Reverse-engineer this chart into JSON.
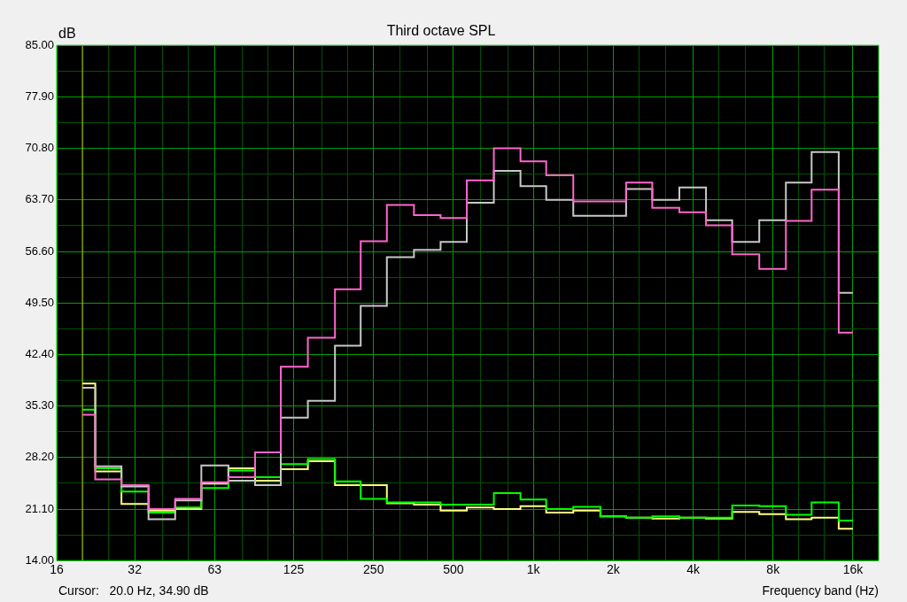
{
  "chart_data": {
    "type": "step",
    "title": "Third octave SPL",
    "ylabel": "dB",
    "xlabel": "Frequency band (Hz)",
    "annotations": [
      "Cursor:   20.0 Hz, 34.90 dB"
    ],
    "x": [
      20,
      25,
      31.5,
      40,
      50,
      63,
      80,
      100,
      125,
      160,
      200,
      250,
      315,
      400,
      500,
      630,
      800,
      1000,
      1250,
      1600,
      2000,
      2500,
      3150,
      4000,
      5000,
      6300,
      8000,
      10000,
      12500,
      16000
    ],
    "series": [
      {
        "color": "#ff66cc",
        "values": [
          34.1,
          25.2,
          24.4,
          21.1,
          22.5,
          24.8,
          25.5,
          28.9,
          40.7,
          44.7,
          51.4,
          58.0,
          63.0,
          61.6,
          61.2,
          66.4,
          70.8,
          69.0,
          67.1,
          63.5,
          63.5,
          66.1,
          62.6,
          62.0,
          60.2,
          56.2,
          54.2,
          60.8,
          65.1,
          45.4
        ]
      },
      {
        "color": "#c8c8c8",
        "values": [
          37.8,
          27.0,
          24.2,
          19.7,
          22.3,
          27.1,
          25.0,
          24.4,
          33.7,
          36.0,
          43.6,
          49.1,
          55.8,
          56.8,
          57.9,
          63.3,
          67.7,
          65.6,
          63.7,
          61.5,
          61.5,
          65.2,
          63.7,
          65.4,
          60.9,
          57.9,
          60.9,
          66.1,
          70.3,
          50.9
        ]
      },
      {
        "color": "#00ff00",
        "values": [
          34.8,
          26.7,
          23.5,
          20.6,
          21.3,
          24.0,
          26.4,
          25.5,
          27.3,
          28.0,
          24.9,
          22.5,
          22.0,
          22.0,
          21.7,
          21.7,
          23.3,
          22.4,
          21.1,
          21.4,
          20.1,
          19.9,
          20.1,
          19.9,
          19.9,
          21.6,
          21.5,
          20.3,
          22.0,
          19.5
        ]
      },
      {
        "color": "#ffff80",
        "values": [
          38.4,
          26.3,
          21.8,
          20.9,
          21.1,
          24.6,
          26.7,
          25.0,
          26.6,
          27.7,
          24.4,
          24.4,
          21.9,
          21.7,
          20.9,
          21.3,
          21.1,
          21.5,
          20.6,
          20.9,
          20.1,
          19.9,
          19.8,
          19.9,
          19.8,
          20.7,
          20.4,
          19.7,
          19.9,
          18.4
        ]
      }
    ],
    "log": "x",
    "xlim": [
      16,
      20000
    ],
    "xticks": [
      {
        "value": 16,
        "label": "16"
      },
      {
        "value": 20,
        "label": null
      },
      {
        "value": 25,
        "label": null
      },
      {
        "value": 31.5,
        "label": "32"
      },
      {
        "value": 40,
        "label": null
      },
      {
        "value": 50,
        "label": null
      },
      {
        "value": 63,
        "label": "63"
      },
      {
        "value": 80,
        "label": null
      },
      {
        "value": 100,
        "label": null
      },
      {
        "value": 125,
        "label": "125"
      },
      {
        "value": 160,
        "label": null
      },
      {
        "value": 200,
        "label": null
      },
      {
        "value": 250,
        "label": "250"
      },
      {
        "value": 315,
        "label": null
      },
      {
        "value": 400,
        "label": null
      },
      {
        "value": 500,
        "label": "500"
      },
      {
        "value": 630,
        "label": null
      },
      {
        "value": 800,
        "label": null
      },
      {
        "value": 1000,
        "label": "1k"
      },
      {
        "value": 1250,
        "label": null
      },
      {
        "value": 1600,
        "label": null
      },
      {
        "value": 2000,
        "label": "2k"
      },
      {
        "value": 2500,
        "label": null
      },
      {
        "value": 3150,
        "label": null
      },
      {
        "value": 4000,
        "label": "4k"
      },
      {
        "value": 5000,
        "label": null
      },
      {
        "value": 6300,
        "label": null
      },
      {
        "value": 8000,
        "label": "8k"
      },
      {
        "value": 10000,
        "label": null
      },
      {
        "value": 12500,
        "label": null
      },
      {
        "value": 16000,
        "label": "16k"
      }
    ],
    "ylim": [
      14,
      85
    ],
    "yticks": [
      {
        "value": 14,
        "label": "14.00"
      },
      {
        "value": 17.55,
        "label": null
      },
      {
        "value": 21.1,
        "label": "21.10"
      },
      {
        "value": 24.65,
        "label": null
      },
      {
        "value": 28.2,
        "label": "28.20"
      },
      {
        "value": 31.75,
        "label": null
      },
      {
        "value": 35.3,
        "label": "35.30"
      },
      {
        "value": 38.85,
        "label": null
      },
      {
        "value": 42.4,
        "label": "42.40"
      },
      {
        "value": 45.95,
        "label": null
      },
      {
        "value": 49.5,
        "label": "49.50"
      },
      {
        "value": 53.05,
        "label": null
      },
      {
        "value": 56.6,
        "label": "56.60"
      },
      {
        "value": 60.15,
        "label": null
      },
      {
        "value": 63.7,
        "label": "63.70"
      },
      {
        "value": 67.25,
        "label": null
      },
      {
        "value": 70.8,
        "label": "70.80"
      },
      {
        "value": 74.35,
        "label": null
      },
      {
        "value": 77.9,
        "label": "77.90"
      },
      {
        "value": 81.45,
        "label": null
      },
      {
        "value": 85,
        "label": "85.00"
      }
    ],
    "grid": true,
    "ref_lines": [
      {
        "axis": "x",
        "value": 20,
        "color": "#c8c800"
      }
    ]
  }
}
